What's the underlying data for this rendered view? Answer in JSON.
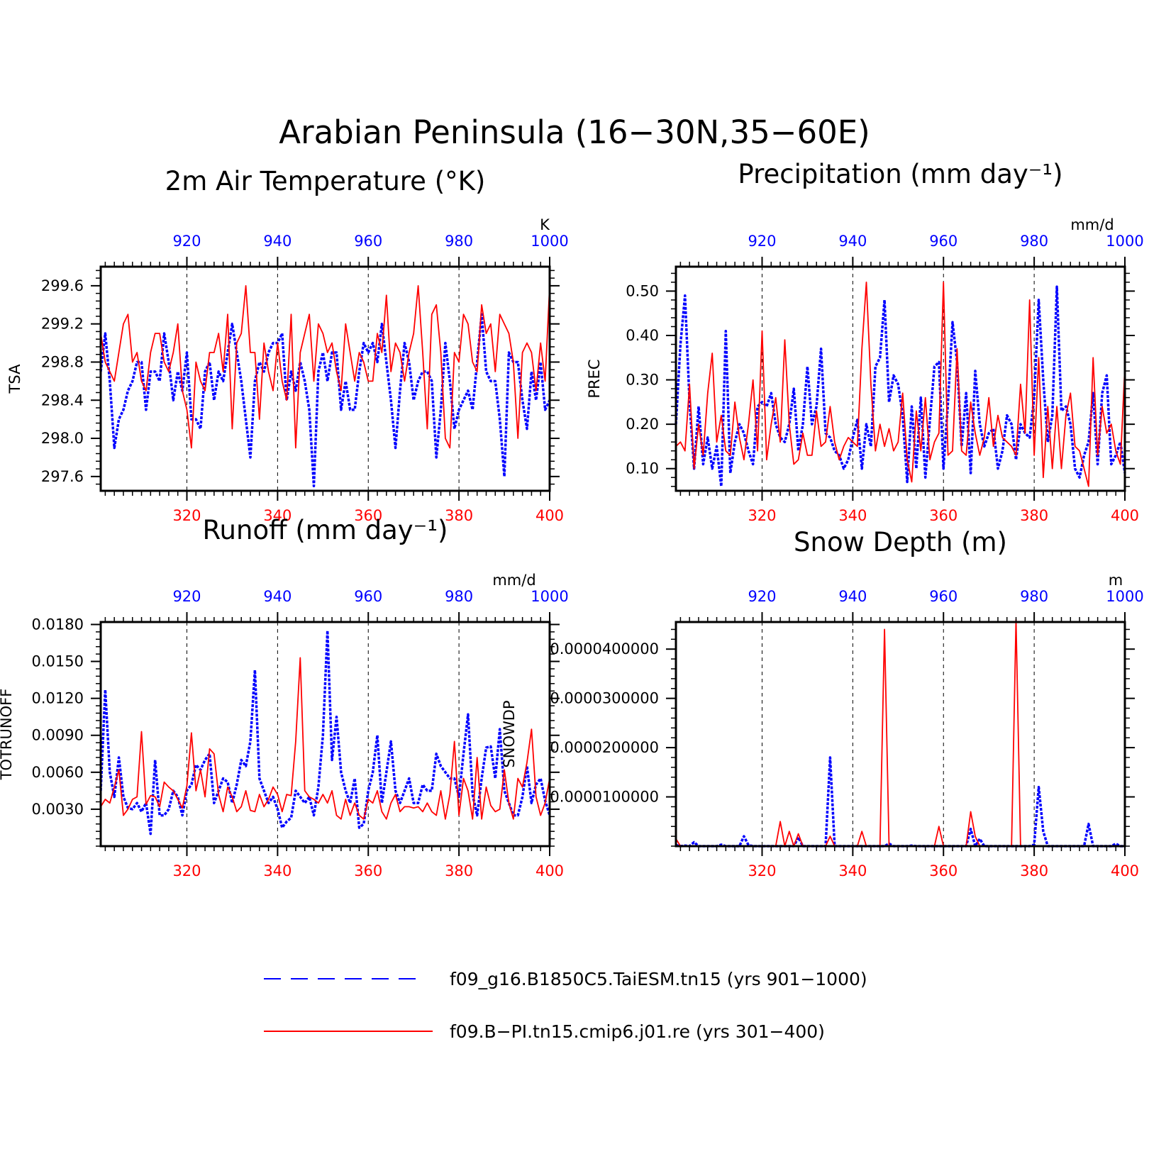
{
  "page": {
    "title": "Arabian Peninsula (16−30N,35−60E)"
  },
  "colors": {
    "series_a": "#0000ff",
    "series_b": "#ff0000",
    "axis": "#000000"
  },
  "legend": [
    {
      "label": "f09_g16.B1850C5.TaiESM.tn15 (yrs 901−1000)",
      "color": "#0000ff",
      "style": "dashed"
    },
    {
      "label": "f09.B−PI.tn15.cmip6.j01.re (yrs 301−400)",
      "color": "#ff0000",
      "style": "solid"
    }
  ],
  "chart_data": [
    {
      "id": "tsa",
      "type": "line",
      "title": "2m Air Temperature (°K)",
      "ylabel": "TSA",
      "units": "K",
      "ylim": [
        297.45,
        299.8
      ],
      "yticks": [
        "297.6",
        "298.0",
        "298.4",
        "298.8",
        "299.2",
        "299.6"
      ],
      "x_bottom": {
        "range": [
          301,
          400
        ],
        "ticks": [
          "320",
          "340",
          "360",
          "380",
          "400"
        ]
      },
      "x_top": {
        "range": [
          901,
          1000
        ],
        "ticks": [
          "920",
          "940",
          "960",
          "980",
          "1000"
        ]
      },
      "grid": "dashed vertical at 320/340/360/380",
      "series": [
        {
          "name": "f09_g16.B1850C5.TaiESM.tn15",
          "axis": "top",
          "style": "dashed",
          "color": "#0000ff",
          "values": [
            298.7,
            299.1,
            298.6,
            297.9,
            298.2,
            298.3,
            298.5,
            298.6,
            298.8,
            298.8,
            298.3,
            298.7,
            298.7,
            298.6,
            299.1,
            298.8,
            298.4,
            298.7,
            298.5,
            298.9,
            298.2,
            298.2,
            298.1,
            298.7,
            298.8,
            298.4,
            298.7,
            298.6,
            298.9,
            299.2,
            298.9,
            298.6,
            298.2,
            297.8,
            298.6,
            298.8,
            298.7,
            298.9,
            299.0,
            299.0,
            299.1,
            298.4,
            298.7,
            298.5,
            298.8,
            298.6,
            298.3,
            297.5,
            298.7,
            298.9,
            298.6,
            298.9,
            298.9,
            298.3,
            298.6,
            298.3,
            298.3,
            298.7,
            299.0,
            298.9,
            299.0,
            298.8,
            299.2,
            298.8,
            298.4,
            297.9,
            298.5,
            299.0,
            298.8,
            298.4,
            298.6,
            298.7,
            298.7,
            298.6,
            297.8,
            298.3,
            299.0,
            298.6,
            298.1,
            298.3,
            298.4,
            298.5,
            298.3,
            298.8,
            299.3,
            298.7,
            298.6,
            298.6,
            298.2,
            297.6,
            298.9,
            298.8,
            298.8,
            298.4,
            298.1,
            298.7,
            298.4,
            298.8,
            298.3,
            298.4
          ]
        },
        {
          "name": "f09.B−PI.tn15.cmip6.j01.re",
          "axis": "bottom",
          "style": "solid",
          "color": "#ff0000",
          "values": [
            299.1,
            298.8,
            298.7,
            298.6,
            298.9,
            299.2,
            299.3,
            298.8,
            298.9,
            298.6,
            298.5,
            298.9,
            299.1,
            299.1,
            298.8,
            298.7,
            298.9,
            299.2,
            298.5,
            298.3,
            297.9,
            298.8,
            298.6,
            298.5,
            298.9,
            298.9,
            299.1,
            298.7,
            299.3,
            298.1,
            299.0,
            299.1,
            299.6,
            298.9,
            298.9,
            298.2,
            299.0,
            298.7,
            298.5,
            299.0,
            298.6,
            298.4,
            299.3,
            297.9,
            298.9,
            299.1,
            299.3,
            298.6,
            299.2,
            299.1,
            298.9,
            299.0,
            298.7,
            298.5,
            299.2,
            298.9,
            298.6,
            298.9,
            298.8,
            298.6,
            298.6,
            299.1,
            298.9,
            299.5,
            298.7,
            299.0,
            298.9,
            298.6,
            298.9,
            299.1,
            299.6,
            298.9,
            298.1,
            299.3,
            299.4,
            298.9,
            298.0,
            297.9,
            298.9,
            298.8,
            299.3,
            299.2,
            298.8,
            298.7,
            299.4,
            299.1,
            299.2,
            298.7,
            299.3,
            299.2,
            299.1,
            298.8,
            298.0,
            298.9,
            299.0,
            298.9,
            298.5,
            299.0,
            298.6,
            299.6
          ]
        }
      ]
    },
    {
      "id": "prec",
      "type": "line",
      "title": "Precipitation (mm day⁻¹)",
      "ylabel": "PREC",
      "units": "mm/d",
      "ylim": [
        0.05,
        0.555
      ],
      "yticks": [
        "0.10",
        "0.20",
        "0.30",
        "0.40",
        "0.50"
      ],
      "x_bottom": {
        "range": [
          301,
          400
        ],
        "ticks": [
          "320",
          "340",
          "360",
          "380",
          "400"
        ]
      },
      "x_top": {
        "range": [
          901,
          1000
        ],
        "ticks": [
          "920",
          "940",
          "960",
          "980",
          "1000"
        ]
      },
      "grid": "dashed vertical at 320/340/360/380",
      "series": [
        {
          "name": "f09_g16.B1850C5.TaiESM.tn15",
          "axis": "top",
          "style": "dashed",
          "color": "#0000ff",
          "values": [
            0.2,
            0.38,
            0.49,
            0.25,
            0.1,
            0.24,
            0.11,
            0.17,
            0.1,
            0.15,
            0.06,
            0.41,
            0.09,
            0.16,
            0.2,
            0.18,
            0.14,
            0.11,
            0.24,
            0.25,
            0.24,
            0.27,
            0.2,
            0.17,
            0.16,
            0.2,
            0.28,
            0.14,
            0.2,
            0.33,
            0.2,
            0.24,
            0.37,
            0.18,
            0.17,
            0.14,
            0.13,
            0.1,
            0.12,
            0.17,
            0.21,
            0.1,
            0.2,
            0.15,
            0.33,
            0.35,
            0.48,
            0.25,
            0.31,
            0.29,
            0.22,
            0.07,
            0.24,
            0.1,
            0.26,
            0.08,
            0.21,
            0.33,
            0.34,
            0.1,
            0.25,
            0.43,
            0.34,
            0.15,
            0.27,
            0.09,
            0.32,
            0.2,
            0.15,
            0.18,
            0.19,
            0.1,
            0.14,
            0.22,
            0.2,
            0.12,
            0.2,
            0.18,
            0.17,
            0.26,
            0.48,
            0.3,
            0.16,
            0.22,
            0.51,
            0.23,
            0.24,
            0.2,
            0.1,
            0.08,
            0.13,
            0.16,
            0.27,
            0.11,
            0.27,
            0.31,
            0.11,
            0.13,
            0.16,
            0.09
          ]
        },
        {
          "name": "f09.B−PI.tn15.cmip6.j01.re",
          "axis": "bottom",
          "style": "solid",
          "color": "#ff0000",
          "values": [
            0.15,
            0.16,
            0.14,
            0.29,
            0.1,
            0.2,
            0.13,
            0.27,
            0.36,
            0.16,
            0.22,
            0.14,
            0.13,
            0.25,
            0.17,
            0.12,
            0.2,
            0.3,
            0.14,
            0.41,
            0.12,
            0.2,
            0.26,
            0.16,
            0.39,
            0.2,
            0.11,
            0.12,
            0.18,
            0.13,
            0.13,
            0.23,
            0.15,
            0.16,
            0.24,
            0.16,
            0.12,
            0.15,
            0.17,
            0.16,
            0.15,
            0.37,
            0.52,
            0.29,
            0.14,
            0.2,
            0.15,
            0.19,
            0.14,
            0.16,
            0.27,
            0.12,
            0.07,
            0.23,
            0.14,
            0.26,
            0.12,
            0.16,
            0.18,
            0.52,
            0.13,
            0.14,
            0.37,
            0.14,
            0.13,
            0.25,
            0.18,
            0.13,
            0.17,
            0.26,
            0.15,
            0.22,
            0.17,
            0.16,
            0.15,
            0.13,
            0.29,
            0.18,
            0.48,
            0.13,
            0.35,
            0.08,
            0.24,
            0.1,
            0.24,
            0.1,
            0.22,
            0.27,
            0.15,
            0.14,
            0.1,
            0.06,
            0.35,
            0.13,
            0.24,
            0.18,
            0.2,
            0.14,
            0.11,
            0.33
          ]
        }
      ]
    },
    {
      "id": "runoff",
      "type": "line",
      "title": "Runoff (mm day⁻¹)",
      "ylabel": "TOTRUNOFF",
      "units": "mm/d",
      "ylim": [
        0.0,
        0.0182
      ],
      "yticks": [
        "0.0030",
        "0.0060",
        "0.0090",
        "0.0120",
        "0.0150",
        "0.0180"
      ],
      "x_bottom": {
        "range": [
          301,
          400
        ],
        "ticks": [
          "320",
          "340",
          "360",
          "380",
          "400"
        ]
      },
      "x_top": {
        "range": [
          901,
          1000
        ],
        "ticks": [
          "920",
          "940",
          "960",
          "980",
          "1000"
        ]
      },
      "grid": "dashed vertical at 320/340/360/380",
      "series": [
        {
          "name": "f09_g16.B1850C5.TaiESM.tn15",
          "axis": "top",
          "style": "dashed",
          "color": "#0000ff",
          "values": [
            0.0045,
            0.0127,
            0.006,
            0.004,
            0.0072,
            0.004,
            0.0031,
            0.003,
            0.0035,
            0.0028,
            0.0035,
            0.001,
            0.007,
            0.0025,
            0.0025,
            0.003,
            0.0045,
            0.004,
            0.0025,
            0.0045,
            0.005,
            0.0066,
            0.0062,
            0.007,
            0.0075,
            0.0035,
            0.0045,
            0.0055,
            0.0052,
            0.0035,
            0.005,
            0.007,
            0.0065,
            0.0085,
            0.0143,
            0.0055,
            0.0045,
            0.0035,
            0.004,
            0.003,
            0.0015,
            0.002,
            0.0023,
            0.0045,
            0.004,
            0.0035,
            0.004,
            0.0025,
            0.0048,
            0.009,
            0.0175,
            0.007,
            0.0105,
            0.006,
            0.0045,
            0.0035,
            0.0055,
            0.0015,
            0.0018,
            0.0045,
            0.006,
            0.009,
            0.0035,
            0.006,
            0.0085,
            0.0045,
            0.0035,
            0.0045,
            0.0055,
            0.0035,
            0.0035,
            0.005,
            0.0045,
            0.0045,
            0.0075,
            0.0065,
            0.006,
            0.0055,
            0.0055,
            0.004,
            0.0075,
            0.0107,
            0.0042,
            0.0025,
            0.0055,
            0.008,
            0.0081,
            0.0055,
            0.0095,
            0.0045,
            0.0035,
            0.0025,
            0.0025,
            0.004,
            0.0065,
            0.0035,
            0.005,
            0.0055,
            0.0037,
            0.0025
          ]
        },
        {
          "name": "f09.B−PI.tn15.cmip6.j01.re",
          "axis": "bottom",
          "style": "solid",
          "color": "#ff0000",
          "values": [
            0.0032,
            0.0038,
            0.0035,
            0.0048,
            0.0062,
            0.0025,
            0.003,
            0.0038,
            0.004,
            0.0093,
            0.0034,
            0.0041,
            0.004,
            0.0032,
            0.0052,
            0.0048,
            0.0045,
            0.0038,
            0.0031,
            0.0049,
            0.0092,
            0.0045,
            0.0062,
            0.004,
            0.0079,
            0.0075,
            0.0042,
            0.0028,
            0.0048,
            0.004,
            0.0028,
            0.0032,
            0.0045,
            0.0029,
            0.0028,
            0.0042,
            0.0032,
            0.0038,
            0.0048,
            0.0042,
            0.0028,
            0.0042,
            0.0041,
            0.0085,
            0.0153,
            0.0045,
            0.004,
            0.0038,
            0.0035,
            0.0042,
            0.0035,
            0.0045,
            0.0025,
            0.0022,
            0.0038,
            0.0025,
            0.0035,
            0.0025,
            0.0022,
            0.0038,
            0.0035,
            0.0045,
            0.0028,
            0.0022,
            0.0035,
            0.0042,
            0.0028,
            0.0032,
            0.0032,
            0.0031,
            0.0032,
            0.0028,
            0.0035,
            0.0028,
            0.0025,
            0.0045,
            0.0022,
            0.0042,
            0.0085,
            0.0025,
            0.0055,
            0.0045,
            0.0022,
            0.0072,
            0.0022,
            0.0048,
            0.0033,
            0.0028,
            0.003,
            0.0062,
            0.0035,
            0.0022,
            0.0055,
            0.0048,
            0.0068,
            0.0095,
            0.004,
            0.0025,
            0.0035,
            0.0055
          ]
        }
      ]
    },
    {
      "id": "snowdp",
      "type": "line",
      "title": "Snow Depth (m)",
      "ylabel": "SNOWDP",
      "units": "m",
      "ylim": [
        0.0,
        4.55e-05
      ],
      "yticks": [
        "0.0000100000",
        "0.0000200000",
        "0.0000300000",
        "0.0000400000"
      ],
      "x_bottom": {
        "range": [
          301,
          400
        ],
        "ticks": [
          "320",
          "340",
          "360",
          "380",
          "400"
        ]
      },
      "x_top": {
        "range": [
          901,
          1000
        ],
        "ticks": [
          "920",
          "940",
          "960",
          "980",
          "1000"
        ]
      },
      "grid": "dashed vertical at 320/340/360/380",
      "series": [
        {
          "name": "f09_g16.B1850C5.TaiESM.tn15",
          "axis": "top",
          "style": "dashed",
          "color": "#0000ff",
          "values": [
            2e-07,
            0,
            1e-07,
            0,
            8e-07,
            0,
            0,
            0,
            0,
            0,
            3e-07,
            0,
            0,
            0,
            0,
            2e-06,
            2e-07,
            0,
            0,
            0,
            0,
            0,
            0,
            0,
            0,
            0,
            0,
            1.8e-06,
            0,
            0,
            0,
            0,
            0,
            0,
            1.8e-05,
            0,
            0,
            0,
            0,
            0,
            0,
            0,
            0,
            0,
            0,
            0,
            0,
            5e-07,
            0,
            0,
            0,
            0,
            1e-07,
            0,
            0,
            0,
            0,
            0,
            0,
            0,
            0,
            0,
            0,
            0,
            0,
            3.5e-06,
            0,
            1.5e-06,
            0,
            0,
            0,
            0,
            0,
            0,
            0,
            0,
            0,
            0,
            0,
            3e-07,
            1.2e-05,
            3e-06,
            0,
            0,
            0,
            0,
            0,
            0,
            0,
            0,
            0,
            4.5e-06,
            0,
            0,
            0,
            0,
            0,
            5e-07,
            0,
            0
          ]
        },
        {
          "name": "f09.B−PI.tn15.cmip6.j01.re",
          "axis": "bottom",
          "style": "solid",
          "color": "#ff0000",
          "values": [
            1.5e-06,
            0,
            0,
            0,
            0,
            0,
            0,
            0,
            0,
            0,
            0,
            0,
            0,
            0,
            0,
            0,
            0,
            0,
            0,
            0,
            0,
            0,
            0,
            5e-06,
            0,
            3e-06,
            0,
            2.5e-06,
            0,
            0,
            0,
            0,
            0,
            0,
            2e-06,
            0,
            0,
            0,
            0,
            0,
            0,
            3e-06,
            0,
            0,
            0,
            0,
            4.4e-05,
            0,
            0,
            0,
            0,
            0,
            0,
            0,
            0,
            0,
            0,
            0,
            4e-06,
            0,
            0,
            0,
            0,
            0,
            0,
            7e-06,
            2e-06,
            0,
            0,
            0,
            0,
            0,
            0,
            0,
            0,
            4.6e-05,
            0,
            0,
            0,
            0,
            0,
            0,
            0,
            0,
            0,
            0,
            0,
            0,
            0,
            0,
            0,
            0,
            0,
            0,
            0,
            0,
            0,
            0,
            0,
            0
          ]
        }
      ]
    }
  ]
}
